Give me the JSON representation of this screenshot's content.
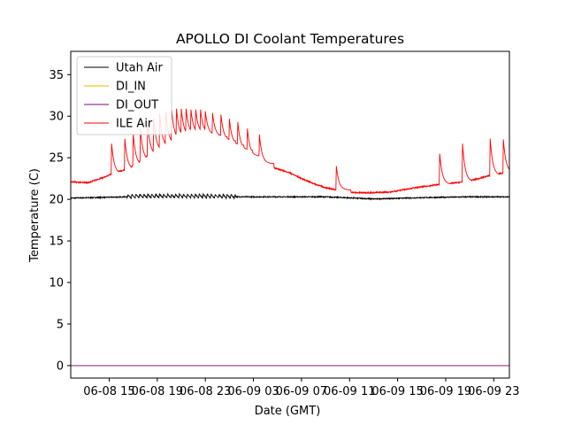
{
  "chart_data": {
    "type": "line",
    "title": "APOLLO DI Coolant Temperatures",
    "xlabel": "Date (GMT)",
    "ylabel": "Temperature (C)",
    "ylim": [
      -1.5,
      37.8
    ],
    "xlim_hours": [
      -3.2,
      33.3
    ],
    "yticks": [
      0,
      5,
      10,
      15,
      20,
      25,
      30,
      35
    ],
    "ytick_labels": [
      "0",
      "5",
      "10",
      "15",
      "20",
      "25",
      "30",
      "35"
    ],
    "xticks_hours": [
      0,
      4,
      8,
      12,
      16,
      20,
      24,
      28,
      32
    ],
    "xtick_labels": [
      "06-08 15",
      "06-08 19",
      "06-08 23",
      "06-09 03",
      "06-09 07",
      "06-09 11",
      "06-09 15",
      "06-09 19",
      "06-09 23"
    ],
    "x_origin": "06-08 15:00 GMT",
    "legend_position": "top-left",
    "series": [
      {
        "name": "Utah Air",
        "color": "#000000",
        "base": {
          "x": [
            -3.2,
            0,
            3,
            7,
            11,
            15,
            18,
            22,
            26,
            30,
            33.3
          ],
          "y": [
            20.15,
            20.25,
            20.35,
            20.35,
            20.3,
            20.3,
            20.3,
            20.05,
            20.2,
            20.3,
            20.3
          ]
        },
        "oscillation": {
          "from": 1.5,
          "to": 10.5,
          "period": 0.33,
          "amplitude": 0.45
        }
      },
      {
        "name": "DI_IN",
        "color": "#e6b800",
        "x": [
          -3.2,
          33.3
        ],
        "y": [
          0,
          0
        ]
      },
      {
        "name": "DI_OUT",
        "color": "#800080",
        "x": [
          -3.2,
          33.3
        ],
        "y": [
          0,
          0
        ]
      },
      {
        "name": "ILE Air",
        "color": "#ff0000",
        "base": {
          "x": [
            -3.2,
            -1.8,
            -0.5,
            0.1,
            0.6,
            1.5,
            2.5,
            3.5,
            4.5,
            5.5,
            6.5,
            7.5,
            8.5,
            9.5,
            10.5,
            11.5,
            12.5,
            13.5,
            15,
            16,
            17,
            18,
            19,
            20.5,
            22,
            23.5,
            25,
            26.5,
            27.5,
            29,
            30.5,
            31.5,
            32.5,
            33.3
          ],
          "y": [
            22.1,
            22.0,
            22.6,
            23.0,
            23.3,
            23.6,
            24.5,
            25.6,
            26.5,
            27.3,
            27.8,
            27.9,
            27.6,
            26.9,
            26.1,
            25.2,
            24.3,
            23.9,
            23.2,
            22.5,
            21.9,
            21.4,
            21.1,
            20.8,
            20.8,
            20.9,
            21.3,
            21.6,
            21.8,
            22.0,
            22.4,
            22.8,
            23.1,
            23.3
          ]
        },
        "spikes": [
          {
            "x": 0.2,
            "y": 26.7
          },
          {
            "x": 1.3,
            "y": 27.3
          },
          {
            "x": 2.0,
            "y": 27.9
          },
          {
            "x": 2.6,
            "y": 28.4
          },
          {
            "x": 3.2,
            "y": 29.2
          },
          {
            "x": 3.7,
            "y": 29.8
          },
          {
            "x": 4.2,
            "y": 30.3
          },
          {
            "x": 4.7,
            "y": 30.6
          },
          {
            "x": 5.2,
            "y": 30.8
          },
          {
            "x": 5.6,
            "y": 30.9
          },
          {
            "x": 6.0,
            "y": 30.9
          },
          {
            "x": 6.4,
            "y": 30.9
          },
          {
            "x": 6.8,
            "y": 30.8
          },
          {
            "x": 7.2,
            "y": 30.8
          },
          {
            "x": 7.6,
            "y": 30.8
          },
          {
            "x": 8.0,
            "y": 30.6
          },
          {
            "x": 8.6,
            "y": 30.4
          },
          {
            "x": 9.3,
            "y": 30.2
          },
          {
            "x": 10.0,
            "y": 29.7
          },
          {
            "x": 10.7,
            "y": 29.3
          },
          {
            "x": 11.5,
            "y": 28.5
          },
          {
            "x": 12.5,
            "y": 27.8
          },
          {
            "x": 18.9,
            "y": 24.0
          },
          {
            "x": 27.5,
            "y": 25.5
          },
          {
            "x": 29.4,
            "y": 26.7
          },
          {
            "x": 31.7,
            "y": 27.3
          },
          {
            "x": 32.8,
            "y": 27.2
          }
        ]
      }
    ]
  }
}
